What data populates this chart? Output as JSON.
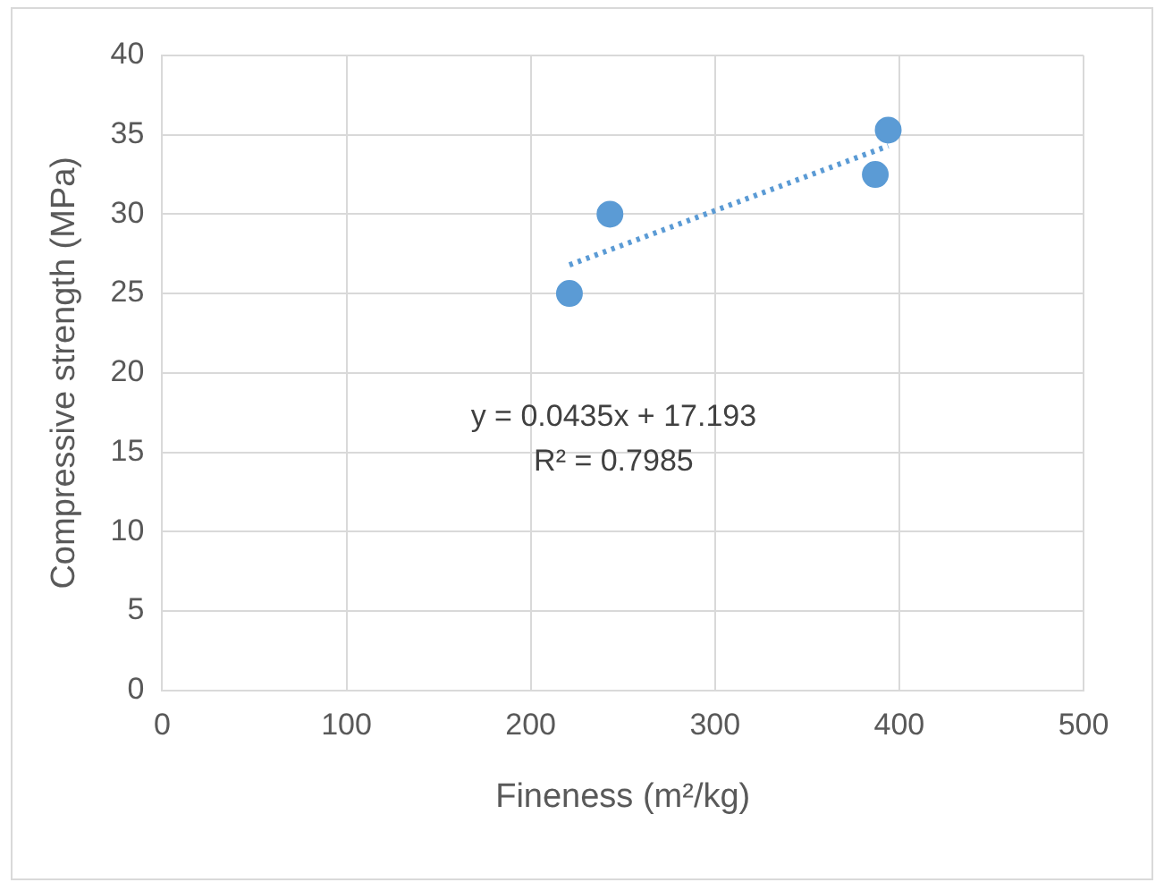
{
  "chart_data": {
    "type": "scatter",
    "xlabel": "Fineness (m²/kg)",
    "ylabel": "Compressive strength (MPa)",
    "series": [
      {
        "color": "#5b9bd5",
        "x": [
          221,
          243,
          387,
          394
        ],
        "values": [
          25,
          30,
          32.5,
          35.3
        ],
        "marker": "circle"
      },
      {
        "type": "line",
        "color": "#5b9bd5",
        "x": [
          221,
          394
        ],
        "values": [
          26.8,
          34.3
        ],
        "line_style": "dotted",
        "marker": "none"
      }
    ],
    "xlim": [
      0,
      500
    ],
    "xticks": [
      0,
      100,
      200,
      300,
      400,
      500
    ],
    "ylim": [
      0,
      40
    ],
    "yticks": [
      0,
      5,
      10,
      15,
      20,
      25,
      30,
      35,
      40
    ],
    "grid": true,
    "legend": false,
    "annotations": [
      "y = 0.0435x + 17.193",
      "R² = 0.7985"
    ]
  }
}
